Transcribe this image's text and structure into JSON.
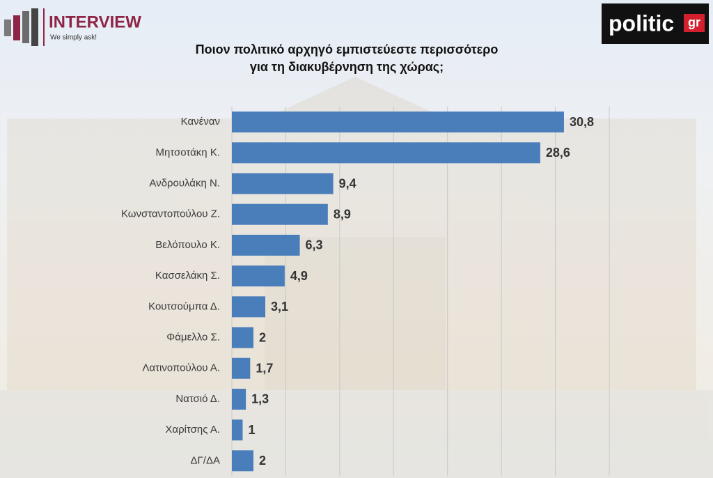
{
  "branding": {
    "left_title": "INTERVIEW",
    "left_tagline": "We simply ask!",
    "right": "politic",
    "right_suffix": "gr"
  },
  "chart_data": {
    "type": "bar",
    "orientation": "horizontal",
    "title": [
      "Ποιον πολιτικό αρχηγό εμπιστεύεστε περισσότερο",
      "για τη διακυβέρνηση της χώρας;"
    ],
    "categories": [
      "Κανέναν",
      "Μητσοτάκη Κ.",
      "Ανδρουλάκη Ν.",
      "Κωνσταντοπούλου Ζ.",
      "Βελόπουλο Κ.",
      "Κασσελάκη Σ.",
      "Κουτσούμπα Δ.",
      "Φάμελλο Σ.",
      "Λατινοπούλου Α.",
      "Νατσιό Δ.",
      "Χαρίτσης Α.",
      "ΔΓ/ΔΑ"
    ],
    "values": [
      30.8,
      28.6,
      9.4,
      8.9,
      6.3,
      4.9,
      3.1,
      2,
      1.7,
      1.3,
      1,
      2
    ],
    "value_labels": [
      "30,8",
      "28,6",
      "9,4",
      "8,9",
      "6,3",
      "4,9",
      "3,1",
      "2",
      "1,7",
      "1,3",
      "1",
      "2"
    ],
    "color": "#4a7ebb",
    "xlim": [
      0,
      35
    ],
    "xticks": [
      0,
      5,
      10,
      15,
      20,
      25,
      30,
      35
    ],
    "grid": true
  }
}
